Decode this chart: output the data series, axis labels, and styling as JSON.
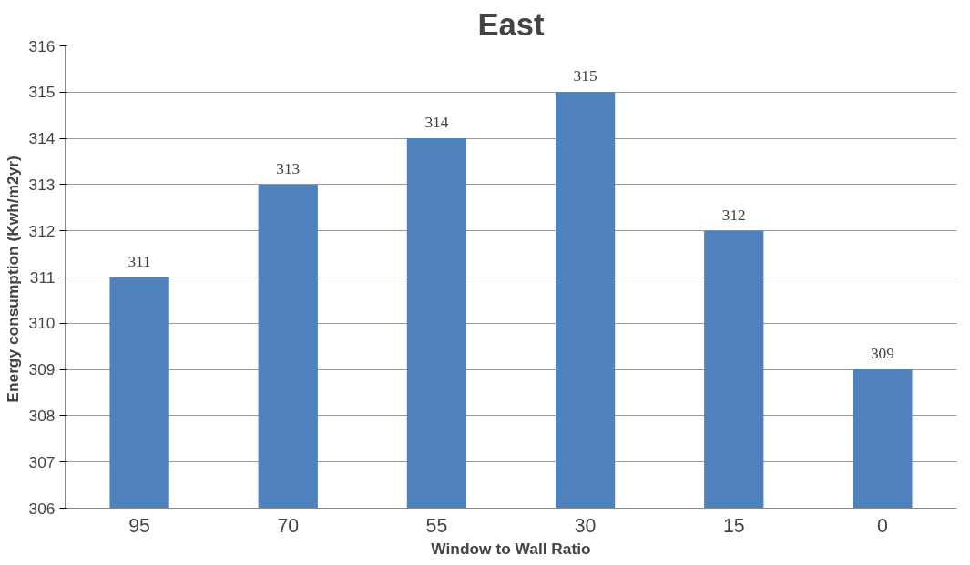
{
  "chart_data": {
    "type": "bar",
    "title": "East",
    "xlabel": "Window to Wall Ratio",
    "ylabel": "Energy consumption  (Kwh/m2yr)",
    "categories": [
      "95",
      "70",
      "55",
      "30",
      "15",
      "0"
    ],
    "values": [
      311,
      313,
      314,
      315,
      312,
      309
    ],
    "color": "#4f81bd",
    "ylim": [
      306,
      316
    ],
    "yticks": [
      306,
      307,
      308,
      309,
      310,
      311,
      312,
      313,
      314,
      315,
      316
    ],
    "grid": "y",
    "data_labels": true
  }
}
